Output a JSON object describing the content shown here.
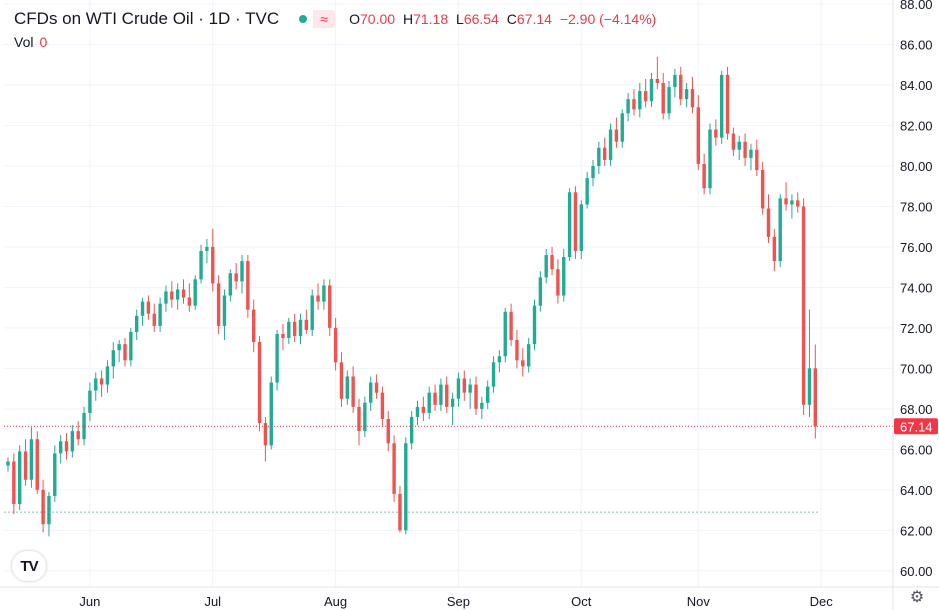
{
  "header": {
    "title": "CFDs on WTI Crude Oil · 1D · TVC",
    "open_label": "O",
    "open": "70.00",
    "high_label": "H",
    "high": "71.18",
    "low_label": "L",
    "low": "66.54",
    "close_label": "C",
    "close": "67.14",
    "change": "−2.90 (−4.14%)",
    "vol_label": "Vol",
    "vol_value": "0",
    "status_icon": "market-open-dot-icon",
    "type_icon": "wave-icon"
  },
  "colors": {
    "up": "#22ab94",
    "down": "#ef5350",
    "grid": "#f0f3fa",
    "text": "#131722",
    "price_line": "#f23645",
    "base_line": "#8fbfb8"
  },
  "logo_text": "TV",
  "settings_icon": "gear-icon",
  "chart_data": {
    "type": "candlestick",
    "title": "CFDs on WTI Crude Oil · 1D · TVC",
    "ylim": [
      59.2,
      88.2
    ],
    "y_ticks": [
      "88.00",
      "86.00",
      "84.00",
      "82.00",
      "80.00",
      "78.00",
      "76.00",
      "74.00",
      "72.00",
      "70.00",
      "68.00",
      "66.00",
      "64.00",
      "62.00",
      "60.00"
    ],
    "x_ticks": [
      {
        "label": "Jun",
        "index": 14
      },
      {
        "label": "Jul",
        "index": 35
      },
      {
        "label": "Aug",
        "index": 56
      },
      {
        "label": "Sep",
        "index": 77
      },
      {
        "label": "Oct",
        "index": 98
      },
      {
        "label": "Nov",
        "index": 118
      },
      {
        "label": "Dec",
        "index": 139
      }
    ],
    "last_price": 67.14,
    "last_price_label": "67.14",
    "reference_level": 62.9,
    "candles": [
      [
        65.2,
        65.6,
        64.9,
        65.4
      ],
      [
        65.4,
        65.8,
        62.8,
        63.3
      ],
      [
        63.3,
        66.2,
        63.0,
        65.9
      ],
      [
        65.9,
        66.5,
        64.2,
        64.5
      ],
      [
        64.5,
        67.1,
        64.1,
        66.5
      ],
      [
        66.5,
        66.9,
        63.8,
        64.0
      ],
      [
        64.0,
        64.5,
        61.9,
        62.3
      ],
      [
        62.3,
        63.9,
        61.7,
        63.7
      ],
      [
        63.7,
        66.2,
        63.4,
        65.8
      ],
      [
        65.8,
        66.7,
        65.3,
        66.4
      ],
      [
        66.4,
        66.8,
        65.5,
        65.9
      ],
      [
        65.9,
        67.2,
        65.6,
        66.9
      ],
      [
        66.9,
        67.4,
        66.2,
        66.5
      ],
      [
        66.5,
        68.1,
        66.2,
        67.8
      ],
      [
        67.8,
        69.3,
        67.4,
        68.9
      ],
      [
        68.9,
        69.8,
        68.4,
        69.5
      ],
      [
        69.5,
        69.9,
        68.6,
        69.2
      ],
      [
        69.2,
        70.4,
        68.8,
        70.1
      ],
      [
        70.1,
        71.3,
        69.5,
        70.9
      ],
      [
        70.9,
        71.4,
        70.3,
        71.2
      ],
      [
        71.2,
        71.5,
        70.1,
        70.4
      ],
      [
        70.4,
        72.0,
        70.1,
        71.8
      ],
      [
        71.8,
        72.9,
        71.4,
        72.6
      ],
      [
        72.6,
        73.5,
        72.1,
        73.3
      ],
      [
        73.3,
        73.6,
        72.4,
        72.7
      ],
      [
        72.7,
        73.2,
        71.8,
        72.1
      ],
      [
        72.1,
        73.5,
        71.8,
        73.2
      ],
      [
        73.2,
        74.1,
        72.8,
        73.8
      ],
      [
        73.8,
        74.3,
        73.0,
        73.4
      ],
      [
        73.4,
        74.2,
        72.9,
        73.9
      ],
      [
        73.9,
        74.4,
        73.2,
        73.5
      ],
      [
        73.5,
        74.2,
        72.8,
        73.1
      ],
      [
        73.1,
        74.6,
        72.9,
        74.4
      ],
      [
        74.4,
        76.1,
        74.2,
        75.8
      ],
      [
        75.8,
        76.4,
        75.2,
        76.0
      ],
      [
        76.0,
        76.9,
        73.8,
        74.2
      ],
      [
        74.2,
        74.6,
        71.7,
        72.1
      ],
      [
        72.1,
        73.9,
        71.4,
        73.6
      ],
      [
        73.6,
        74.9,
        73.3,
        74.7
      ],
      [
        74.7,
        75.2,
        73.9,
        74.3
      ],
      [
        74.3,
        75.6,
        73.7,
        75.3
      ],
      [
        75.3,
        75.6,
        72.5,
        72.9
      ],
      [
        72.9,
        73.4,
        70.8,
        71.3
      ],
      [
        71.3,
        71.6,
        66.9,
        67.3
      ],
      [
        67.3,
        67.6,
        65.4,
        66.2
      ],
      [
        66.2,
        69.6,
        66.0,
        69.3
      ],
      [
        69.3,
        71.9,
        68.9,
        71.7
      ],
      [
        71.7,
        72.2,
        70.9,
        71.5
      ],
      [
        71.5,
        72.5,
        71.2,
        72.3
      ],
      [
        72.3,
        72.7,
        71.3,
        71.6
      ],
      [
        71.6,
        72.7,
        71.2,
        72.4
      ],
      [
        72.4,
        72.9,
        71.7,
        71.9
      ],
      [
        71.9,
        73.9,
        71.6,
        73.6
      ],
      [
        73.6,
        74.2,
        72.9,
        73.3
      ],
      [
        73.3,
        74.4,
        72.9,
        74.1
      ],
      [
        74.1,
        74.4,
        71.6,
        72.0
      ],
      [
        72.0,
        72.5,
        69.9,
        70.3
      ],
      [
        70.3,
        70.8,
        68.1,
        68.5
      ],
      [
        68.5,
        69.9,
        68.2,
        69.6
      ],
      [
        69.6,
        70.1,
        67.8,
        68.1
      ],
      [
        68.1,
        68.5,
        66.2,
        66.9
      ],
      [
        66.9,
        68.6,
        66.6,
        68.3
      ],
      [
        68.3,
        69.6,
        67.9,
        69.3
      ],
      [
        69.3,
        69.7,
        68.5,
        68.8
      ],
      [
        68.8,
        69.1,
        67.1,
        67.5
      ],
      [
        67.5,
        67.9,
        65.9,
        66.3
      ],
      [
        66.3,
        66.7,
        63.4,
        63.8
      ],
      [
        63.8,
        64.2,
        61.9,
        62.0
      ],
      [
        62.0,
        66.6,
        61.8,
        66.3
      ],
      [
        66.3,
        67.9,
        66.0,
        67.6
      ],
      [
        67.6,
        68.4,
        67.2,
        68.1
      ],
      [
        68.1,
        68.6,
        67.4,
        67.8
      ],
      [
        67.8,
        69.1,
        67.5,
        68.8
      ],
      [
        68.8,
        69.2,
        67.9,
        68.2
      ],
      [
        68.2,
        69.5,
        67.9,
        69.2
      ],
      [
        69.2,
        69.6,
        67.8,
        68.1
      ],
      [
        68.1,
        68.8,
        67.2,
        68.5
      ],
      [
        68.5,
        69.8,
        68.1,
        69.5
      ],
      [
        69.5,
        69.9,
        68.4,
        68.8
      ],
      [
        68.8,
        69.5,
        68.0,
        69.2
      ],
      [
        69.2,
        69.6,
        67.7,
        68.0
      ],
      [
        68.0,
        68.6,
        67.5,
        68.3
      ],
      [
        68.3,
        69.4,
        68.0,
        69.1
      ],
      [
        69.1,
        70.6,
        68.8,
        70.3
      ],
      [
        70.3,
        70.9,
        69.8,
        70.6
      ],
      [
        70.6,
        73.0,
        70.3,
        72.8
      ],
      [
        72.8,
        73.2,
        71.1,
        71.4
      ],
      [
        71.4,
        71.9,
        70.0,
        70.4
      ],
      [
        70.4,
        71.0,
        69.6,
        70.1
      ],
      [
        70.1,
        71.5,
        69.8,
        71.2
      ],
      [
        71.2,
        73.4,
        70.9,
        73.1
      ],
      [
        73.1,
        74.8,
        72.8,
        74.5
      ],
      [
        74.5,
        75.9,
        74.2,
        75.6
      ],
      [
        75.6,
        76.0,
        74.6,
        74.9
      ],
      [
        74.9,
        75.4,
        73.2,
        73.6
      ],
      [
        73.6,
        75.9,
        73.3,
        75.5
      ],
      [
        75.5,
        78.9,
        75.3,
        78.7
      ],
      [
        78.7,
        79.0,
        75.4,
        75.8
      ],
      [
        75.8,
        78.3,
        75.4,
        78.1
      ],
      [
        78.1,
        79.7,
        77.9,
        79.4
      ],
      [
        79.4,
        80.3,
        79.0,
        80.0
      ],
      [
        80.0,
        81.2,
        79.6,
        80.9
      ],
      [
        80.9,
        81.4,
        80.0,
        80.3
      ],
      [
        80.3,
        82.1,
        80.0,
        81.8
      ],
      [
        81.8,
        82.4,
        80.9,
        81.2
      ],
      [
        81.2,
        82.8,
        80.9,
        82.6
      ],
      [
        82.6,
        83.6,
        82.2,
        83.3
      ],
      [
        83.3,
        83.8,
        82.5,
        82.8
      ],
      [
        82.8,
        84.1,
        82.4,
        83.7
      ],
      [
        83.7,
        84.3,
        82.9,
        83.2
      ],
      [
        83.2,
        84.6,
        82.9,
        84.3
      ],
      [
        84.3,
        85.4,
        83.8,
        84.1
      ],
      [
        84.1,
        84.6,
        82.3,
        82.6
      ],
      [
        82.6,
        84.2,
        82.3,
        83.9
      ],
      [
        83.9,
        84.8,
        83.4,
        84.5
      ],
      [
        84.5,
        84.9,
        83.0,
        83.3
      ],
      [
        83.3,
        84.1,
        82.9,
        83.8
      ],
      [
        83.8,
        84.4,
        82.6,
        82.9
      ],
      [
        82.9,
        83.5,
        79.8,
        80.1
      ],
      [
        80.1,
        80.6,
        78.6,
        78.9
      ],
      [
        78.9,
        82.1,
        78.6,
        81.8
      ],
      [
        81.8,
        82.3,
        81.0,
        81.4
      ],
      [
        81.4,
        84.7,
        81.1,
        84.5
      ],
      [
        84.5,
        84.9,
        81.3,
        81.6
      ],
      [
        81.6,
        81.9,
        80.5,
        80.8
      ],
      [
        80.8,
        81.5,
        80.3,
        81.2
      ],
      [
        81.2,
        81.6,
        80.0,
        80.4
      ],
      [
        80.4,
        81.1,
        79.8,
        80.8
      ],
      [
        80.8,
        81.3,
        79.5,
        79.8
      ],
      [
        79.8,
        80.2,
        77.6,
        77.9
      ],
      [
        77.9,
        78.6,
        76.2,
        76.5
      ],
      [
        76.5,
        76.9,
        74.8,
        75.3
      ],
      [
        75.3,
        78.6,
        75.0,
        78.4
      ],
      [
        78.4,
        79.2,
        77.8,
        78.1
      ],
      [
        78.1,
        78.6,
        77.4,
        78.3
      ],
      [
        78.3,
        78.7,
        77.7,
        78.0
      ],
      [
        78.0,
        78.4,
        67.7,
        68.2
      ],
      [
        68.2,
        72.9,
        67.6,
        70.0
      ],
      [
        70.0,
        71.18,
        66.54,
        67.14
      ]
    ]
  }
}
